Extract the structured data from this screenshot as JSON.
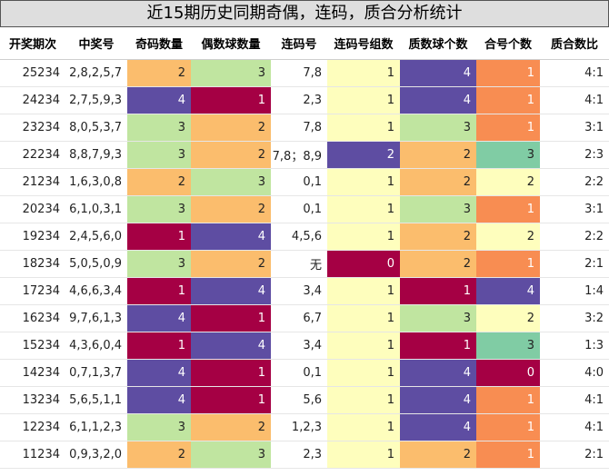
{
  "title": "近15期历史同期奇偶，连码，质合分析统计",
  "columns": [
    "开奖期次",
    "中奖号",
    "奇码数量",
    "偶数球数量",
    "连码号",
    "连码号组数",
    "质数球个数",
    "合号个数",
    "质合数比"
  ],
  "colors": {
    "c0": "#a50044",
    "c1": "#f88d52",
    "c2": "#fbbd6d",
    "c3": "#fefebd",
    "c4": "#c0e5a0",
    "c5": "#80cca4",
    "c6": "#5e4da2"
  },
  "chart_data": {
    "type": "table",
    "columns": [
      "开奖期次",
      "中奖号",
      "奇码数量",
      "偶数球数量",
      "连码号",
      "连码号组数",
      "质数球个数",
      "合号个数",
      "质合数比"
    ],
    "rows": [
      [
        "25234",
        "2,8,2,5,7",
        2,
        3,
        "7,8",
        1,
        4,
        1,
        "4:1"
      ],
      [
        "24234",
        "2,7,5,9,3",
        4,
        1,
        "2,3",
        1,
        4,
        1,
        "4:1"
      ],
      [
        "23234",
        "8,0,5,3,7",
        3,
        2,
        "7,8",
        1,
        3,
        1,
        "3:1"
      ],
      [
        "22234",
        "8,8,7,9,3",
        3,
        2,
        "7,8；8,9",
        2,
        2,
        3,
        "2:3"
      ],
      [
        "21234",
        "1,6,3,0,8",
        2,
        3,
        "0,1",
        1,
        2,
        2,
        "2:2"
      ],
      [
        "20234",
        "6,1,0,3,1",
        3,
        2,
        "0,1",
        1,
        3,
        1,
        "3:1"
      ],
      [
        "19234",
        "2,4,5,6,0",
        1,
        4,
        "4,5,6",
        1,
        2,
        2,
        "2:2"
      ],
      [
        "18234",
        "5,0,5,0,9",
        3,
        2,
        "无",
        0,
        2,
        1,
        "2:1"
      ],
      [
        "17234",
        "4,6,6,3,4",
        1,
        4,
        "3,4",
        1,
        1,
        4,
        "1:4"
      ],
      [
        "16234",
        "9,7,6,1,3",
        4,
        1,
        "6,7",
        1,
        3,
        2,
        "3:2"
      ],
      [
        "15234",
        "4,3,6,0,4",
        1,
        4,
        "3,4",
        1,
        1,
        3,
        "1:3"
      ],
      [
        "14234",
        "0,7,1,3,7",
        4,
        1,
        "0,1",
        1,
        4,
        0,
        "4:0"
      ],
      [
        "13234",
        "5,6,5,1,1",
        4,
        1,
        "5,6",
        1,
        4,
        1,
        "4:1"
      ],
      [
        "12234",
        "6,1,1,2,3",
        3,
        2,
        "1,2,3",
        1,
        4,
        1,
        "4:1"
      ],
      [
        "11234",
        "0,9,3,2,0",
        2,
        3,
        "2,3",
        1,
        2,
        1,
        "2:1"
      ]
    ],
    "cell_colors": [
      [
        null,
        null,
        "c2",
        "c4",
        null,
        "c3",
        "c6",
        "c1",
        null
      ],
      [
        null,
        null,
        "c6",
        "c0",
        null,
        "c3",
        "c6",
        "c1",
        null
      ],
      [
        null,
        null,
        "c4",
        "c2",
        null,
        "c3",
        "c4",
        "c1",
        null
      ],
      [
        null,
        null,
        "c4",
        "c2",
        null,
        "c6",
        "c2",
        "c5",
        null
      ],
      [
        null,
        null,
        "c2",
        "c4",
        null,
        "c3",
        "c2",
        "c3",
        null
      ],
      [
        null,
        null,
        "c4",
        "c2",
        null,
        "c3",
        "c4",
        "c1",
        null
      ],
      [
        null,
        null,
        "c0",
        "c6",
        null,
        "c3",
        "c2",
        "c3",
        null
      ],
      [
        null,
        null,
        "c4",
        "c2",
        null,
        "c0",
        "c2",
        "c1",
        null
      ],
      [
        null,
        null,
        "c0",
        "c6",
        null,
        "c3",
        "c0",
        "c6",
        null
      ],
      [
        null,
        null,
        "c6",
        "c0",
        null,
        "c3",
        "c4",
        "c3",
        null
      ],
      [
        null,
        null,
        "c0",
        "c6",
        null,
        "c3",
        "c0",
        "c5",
        null
      ],
      [
        null,
        null,
        "c6",
        "c0",
        null,
        "c3",
        "c6",
        "c0",
        null
      ],
      [
        null,
        null,
        "c6",
        "c0",
        null,
        "c3",
        "c6",
        "c1",
        null
      ],
      [
        null,
        null,
        "c4",
        "c2",
        null,
        "c3",
        "c6",
        "c1",
        null
      ],
      [
        null,
        null,
        "c2",
        "c4",
        null,
        "c3",
        "c2",
        "c1",
        null
      ]
    ]
  }
}
